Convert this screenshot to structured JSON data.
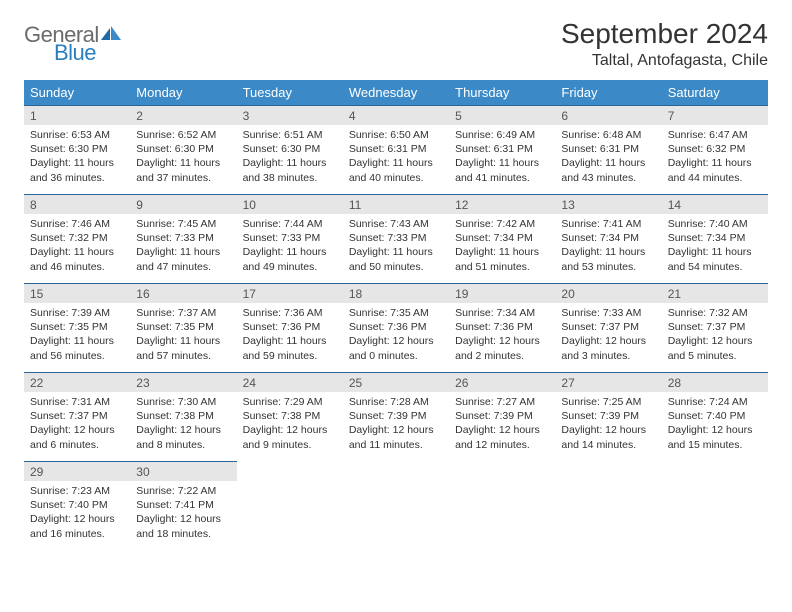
{
  "logo": {
    "word1": "General",
    "word2": "Blue"
  },
  "title": "September 2024",
  "location": "Taltal, Antofagasta, Chile",
  "colors": {
    "header_bg": "#3b89c7",
    "header_text": "#ffffff",
    "daynum_bg": "#e6e6e6",
    "daynum_border": "#2a6496",
    "body_text": "#333333",
    "logo_gray": "#6b6b6b",
    "logo_blue": "#2a7fbf"
  },
  "typography": {
    "title_fontsize": 28,
    "location_fontsize": 16,
    "header_fontsize": 13,
    "daynum_fontsize": 12,
    "body_fontsize": 10.5
  },
  "weekdays": [
    "Sunday",
    "Monday",
    "Tuesday",
    "Wednesday",
    "Thursday",
    "Friday",
    "Saturday"
  ],
  "weeks": [
    [
      {
        "n": "1",
        "sr": "6:53 AM",
        "ss": "6:30 PM",
        "dl": "11 hours and 36 minutes."
      },
      {
        "n": "2",
        "sr": "6:52 AM",
        "ss": "6:30 PM",
        "dl": "11 hours and 37 minutes."
      },
      {
        "n": "3",
        "sr": "6:51 AM",
        "ss": "6:30 PM",
        "dl": "11 hours and 38 minutes."
      },
      {
        "n": "4",
        "sr": "6:50 AM",
        "ss": "6:31 PM",
        "dl": "11 hours and 40 minutes."
      },
      {
        "n": "5",
        "sr": "6:49 AM",
        "ss": "6:31 PM",
        "dl": "11 hours and 41 minutes."
      },
      {
        "n": "6",
        "sr": "6:48 AM",
        "ss": "6:31 PM",
        "dl": "11 hours and 43 minutes."
      },
      {
        "n": "7",
        "sr": "6:47 AM",
        "ss": "6:32 PM",
        "dl": "11 hours and 44 minutes."
      }
    ],
    [
      {
        "n": "8",
        "sr": "7:46 AM",
        "ss": "7:32 PM",
        "dl": "11 hours and 46 minutes."
      },
      {
        "n": "9",
        "sr": "7:45 AM",
        "ss": "7:33 PM",
        "dl": "11 hours and 47 minutes."
      },
      {
        "n": "10",
        "sr": "7:44 AM",
        "ss": "7:33 PM",
        "dl": "11 hours and 49 minutes."
      },
      {
        "n": "11",
        "sr": "7:43 AM",
        "ss": "7:33 PM",
        "dl": "11 hours and 50 minutes."
      },
      {
        "n": "12",
        "sr": "7:42 AM",
        "ss": "7:34 PM",
        "dl": "11 hours and 51 minutes."
      },
      {
        "n": "13",
        "sr": "7:41 AM",
        "ss": "7:34 PM",
        "dl": "11 hours and 53 minutes."
      },
      {
        "n": "14",
        "sr": "7:40 AM",
        "ss": "7:34 PM",
        "dl": "11 hours and 54 minutes."
      }
    ],
    [
      {
        "n": "15",
        "sr": "7:39 AM",
        "ss": "7:35 PM",
        "dl": "11 hours and 56 minutes."
      },
      {
        "n": "16",
        "sr": "7:37 AM",
        "ss": "7:35 PM",
        "dl": "11 hours and 57 minutes."
      },
      {
        "n": "17",
        "sr": "7:36 AM",
        "ss": "7:36 PM",
        "dl": "11 hours and 59 minutes."
      },
      {
        "n": "18",
        "sr": "7:35 AM",
        "ss": "7:36 PM",
        "dl": "12 hours and 0 minutes."
      },
      {
        "n": "19",
        "sr": "7:34 AM",
        "ss": "7:36 PM",
        "dl": "12 hours and 2 minutes."
      },
      {
        "n": "20",
        "sr": "7:33 AM",
        "ss": "7:37 PM",
        "dl": "12 hours and 3 minutes."
      },
      {
        "n": "21",
        "sr": "7:32 AM",
        "ss": "7:37 PM",
        "dl": "12 hours and 5 minutes."
      }
    ],
    [
      {
        "n": "22",
        "sr": "7:31 AM",
        "ss": "7:37 PM",
        "dl": "12 hours and 6 minutes."
      },
      {
        "n": "23",
        "sr": "7:30 AM",
        "ss": "7:38 PM",
        "dl": "12 hours and 8 minutes."
      },
      {
        "n": "24",
        "sr": "7:29 AM",
        "ss": "7:38 PM",
        "dl": "12 hours and 9 minutes."
      },
      {
        "n": "25",
        "sr": "7:28 AM",
        "ss": "7:39 PM",
        "dl": "12 hours and 11 minutes."
      },
      {
        "n": "26",
        "sr": "7:27 AM",
        "ss": "7:39 PM",
        "dl": "12 hours and 12 minutes."
      },
      {
        "n": "27",
        "sr": "7:25 AM",
        "ss": "7:39 PM",
        "dl": "12 hours and 14 minutes."
      },
      {
        "n": "28",
        "sr": "7:24 AM",
        "ss": "7:40 PM",
        "dl": "12 hours and 15 minutes."
      }
    ],
    [
      {
        "n": "29",
        "sr": "7:23 AM",
        "ss": "7:40 PM",
        "dl": "12 hours and 16 minutes."
      },
      {
        "n": "30",
        "sr": "7:22 AM",
        "ss": "7:41 PM",
        "dl": "12 hours and 18 minutes."
      },
      null,
      null,
      null,
      null,
      null
    ]
  ],
  "labels": {
    "sunrise_prefix": "Sunrise: ",
    "sunset_prefix": "Sunset: ",
    "daylight_prefix": "Daylight: "
  }
}
